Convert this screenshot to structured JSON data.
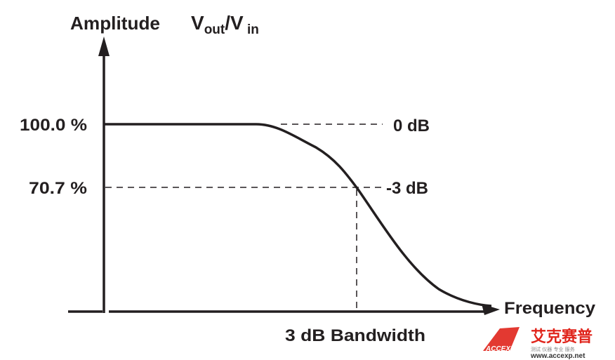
{
  "diagram": {
    "y_axis_title": "Amplitude",
    "ratio_label": {
      "main": "V",
      "out_sub": "out",
      "slash": "/V",
      "in_sub": " in"
    },
    "y_levels": [
      {
        "percent_label": "100.0 %",
        "db_label": "0 dB"
      },
      {
        "percent_label": "70.7 %",
        "db_label": "-3 dB"
      }
    ],
    "x_axis_title": "Frequency",
    "bandwidth_label": "3 dB Bandwidth",
    "line_color": "#231f20"
  },
  "watermark": {
    "brand_cn": "艾克赛普",
    "logo_text": "ACCEXP",
    "tagline_cn": "测试 仪器 专业 服务",
    "url": "www.accexp.net",
    "color": "#e0241b"
  }
}
